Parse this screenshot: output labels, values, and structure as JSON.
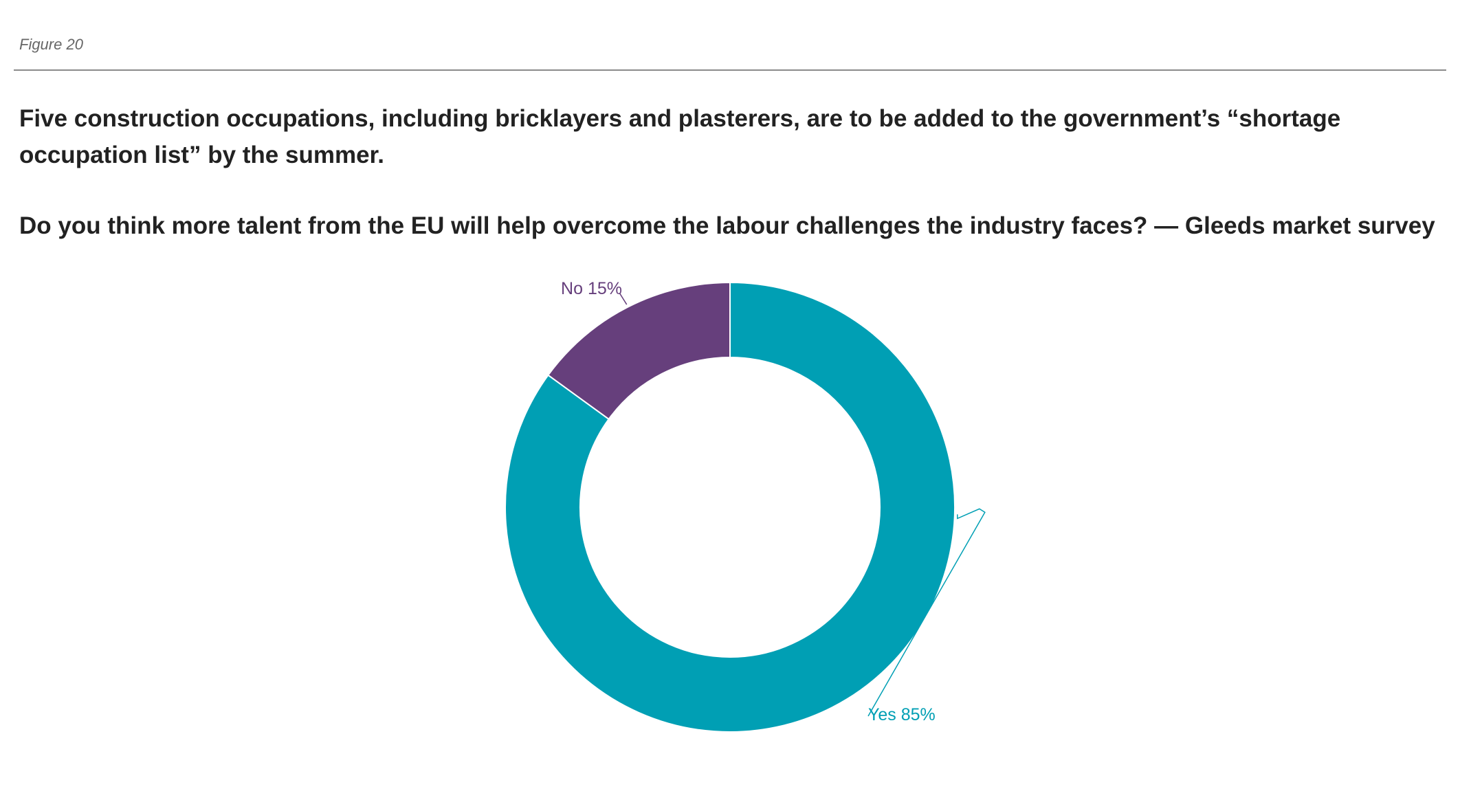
{
  "figure_label": "Figure 20",
  "headline": "Five construction occupations, including bricklayers and plasterers, are to be added to the government’s “shortage occupation list” by the summer.",
  "chart_data": {
    "type": "pie",
    "donut": true,
    "title": "Do you think more talent from the EU will help overcome the labour challenges the industry faces? — Gleeds market survey",
    "slices": [
      {
        "label": "Yes",
        "value": 85,
        "text": "Yes 85%",
        "color": "#009fb4"
      },
      {
        "label": "No",
        "value": 15,
        "text": "No 15%",
        "color": "#663f7c"
      }
    ]
  }
}
